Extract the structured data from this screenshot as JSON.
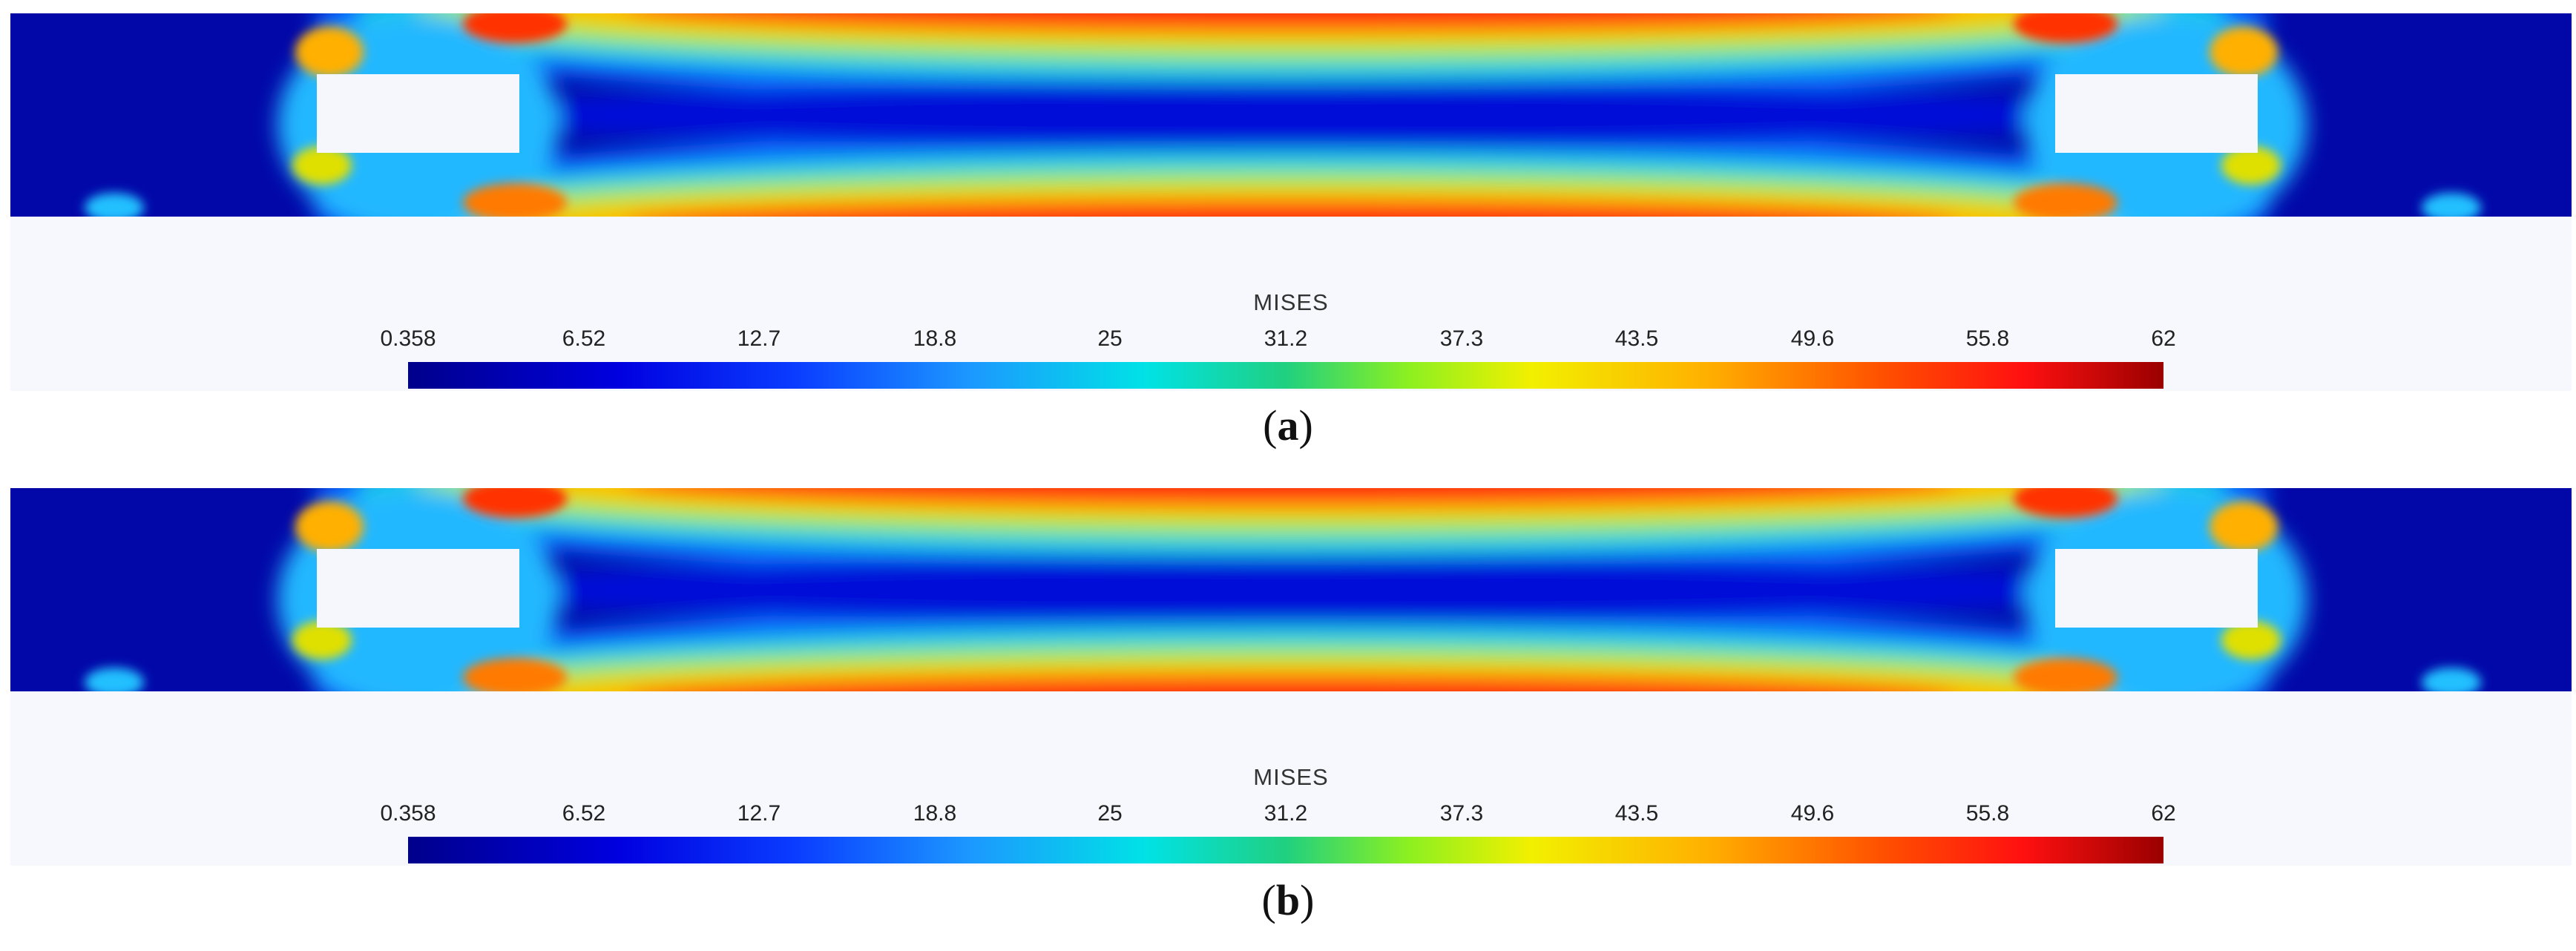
{
  "panels": [
    {
      "caption_letter": "a",
      "legend": {
        "title": "MISES",
        "ticks": [
          "0.358",
          "6.52",
          "12.7",
          "18.8",
          "25",
          "31.2",
          "37.3",
          "43.5",
          "49.6",
          "55.8",
          "62"
        ]
      }
    },
    {
      "caption_letter": "b",
      "legend": {
        "title": "MISES",
        "ticks": [
          "0.358",
          "6.52",
          "12.7",
          "18.8",
          "25",
          "31.2",
          "37.3",
          "43.5",
          "49.6",
          "55.8",
          "62"
        ]
      }
    }
  ],
  "colors": {
    "low": "#00008b",
    "high": "#9a0000",
    "hole": "#f6f7fc"
  }
}
